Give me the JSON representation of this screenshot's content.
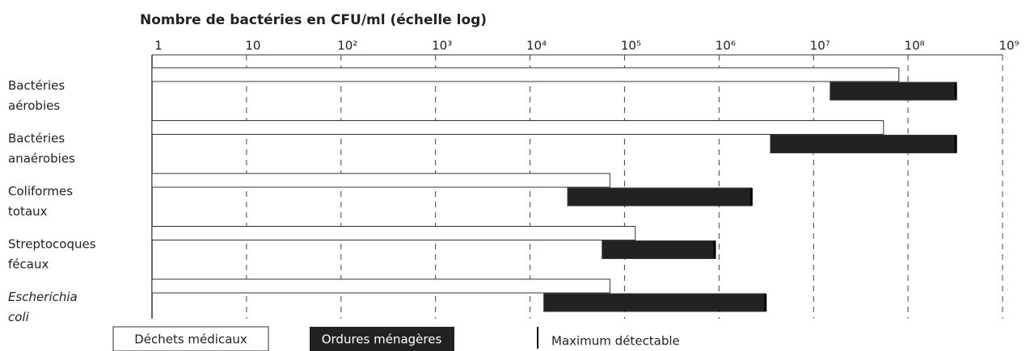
{
  "chart_data": {
    "type": "range-bar",
    "title": "Nombre de bactéries en CFU/ml (échelle log)",
    "categories": [
      "Bactéries aérobies",
      "Bactéries anaérobies",
      "Coliformes totaux",
      "Streptocoques fécaux",
      "Escherichia coli"
    ],
    "italic_categories": [
      "Escherichia coli"
    ],
    "series": [
      {
        "name": "Déchets médicaux",
        "color": "#ffffff",
        "low": [
          1,
          1,
          1,
          1,
          1
        ],
        "high": [
          80000000,
          55000000,
          70000,
          130000,
          70000
        ]
      },
      {
        "name": "Ordures ménagères",
        "color": "#222222",
        "low": [
          15000000,
          3500000,
          25000,
          58000,
          14000
        ],
        "high": [
          320000000,
          320000000,
          2200000,
          900000,
          3100000
        ]
      }
    ],
    "max_marker_label": "Maximum détectable",
    "xscale": "log",
    "xlim": [
      1,
      1000000000
    ],
    "xticks": [
      1,
      10,
      {
        "value": 100,
        "label": "10²"
      },
      {
        "value": 1000,
        "label": "10³"
      },
      {
        "value": 10000,
        "label": "10⁴"
      },
      {
        "value": 100000,
        "label": "10⁵"
      },
      {
        "value": 1000000,
        "label": "10⁶"
      },
      {
        "value": 10000000,
        "label": "10⁷"
      },
      {
        "value": 100000000,
        "label": "10⁸"
      },
      {
        "value": 1000000000,
        "label": "10⁹"
      }
    ],
    "grid": true
  }
}
